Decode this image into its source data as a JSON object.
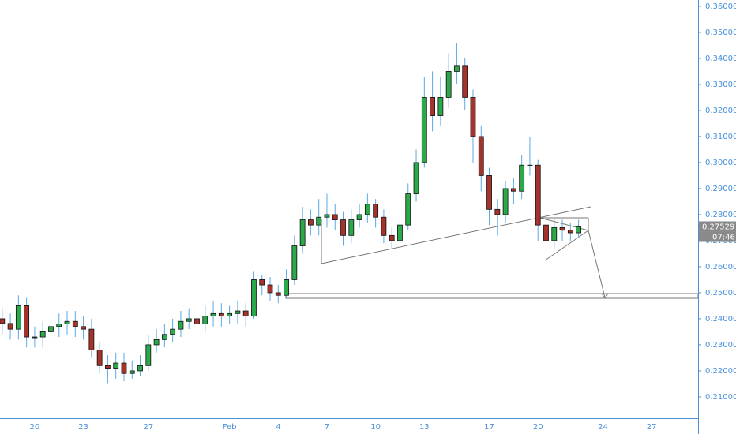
{
  "chart_data": {
    "type": "candlestick",
    "colors": {
      "up": "#2ba84a",
      "down": "#a5332c",
      "wick": "#5aa9e6",
      "axis": "#4a90d9"
    },
    "categories": [
      null,
      null,
      null,
      null,
      "20",
      null,
      null,
      null,
      null,
      null,
      "23",
      null,
      null,
      null,
      null,
      null,
      null,
      null,
      "27",
      null,
      null,
      null,
      null,
      null,
      null,
      null,
      null,
      null,
      "Feb",
      null,
      null,
      null,
      null,
      null,
      "4",
      null,
      null,
      null,
      null,
      null,
      "7",
      null,
      null,
      null,
      null,
      null,
      "10",
      null,
      null,
      null,
      null,
      null,
      "13",
      null,
      null,
      null,
      null,
      null,
      null,
      null,
      "17",
      null,
      null,
      null,
      null,
      null,
      "20",
      null,
      null,
      null,
      null,
      null,
      null,
      null,
      "24",
      null,
      null,
      null,
      null,
      null,
      "27",
      null,
      null,
      null,
      null,
      null
    ],
    "open": [
      0.24,
      0.2382,
      0.236,
      0.245,
      0.233,
      0.233,
      0.235,
      0.237,
      0.238,
      0.239,
      0.237,
      0.236,
      0.228,
      0.222,
      0.221,
      0.223,
      0.219,
      0.22,
      0.222,
      0.23,
      0.232,
      0.234,
      0.236,
      0.239,
      0.24,
      0.238,
      0.241,
      0.242,
      0.241,
      0.242,
      0.243,
      0.241,
      0.255,
      0.253,
      0.25,
      0.249,
      0.255,
      0.268,
      0.278,
      0.276,
      0.279,
      0.28,
      0.278,
      0.272,
      0.278,
      0.28,
      0.284,
      0.279,
      0.272,
      0.27,
      0.276,
      0.288,
      0.3,
      0.325,
      0.318,
      0.325,
      0.335,
      0.337,
      0.325,
      0.31,
      0.295,
      0.282,
      0.28,
      0.29,
      0.289,
      0.299,
      0.299,
      0.276,
      0.27,
      0.275,
      0.274,
      0.273,
      null,
      null,
      null,
      null,
      null,
      null,
      null,
      null,
      null,
      null,
      null,
      null,
      null,
      null
    ],
    "high": [
      0.244,
      0.242,
      0.249,
      0.248,
      0.237,
      0.239,
      0.241,
      0.242,
      0.243,
      0.243,
      0.241,
      0.24,
      0.231,
      0.226,
      0.227,
      0.227,
      0.224,
      0.226,
      0.234,
      0.236,
      0.238,
      0.24,
      0.243,
      0.244,
      0.243,
      0.245,
      0.247,
      0.246,
      0.245,
      0.247,
      0.246,
      0.258,
      0.257,
      0.256,
      0.253,
      0.259,
      0.272,
      0.283,
      0.282,
      0.286,
      0.288,
      0.284,
      0.281,
      0.282,
      0.284,
      0.288,
      0.286,
      0.282,
      0.275,
      0.28,
      0.292,
      0.305,
      0.333,
      0.335,
      0.333,
      0.342,
      0.346,
      0.34,
      0.328,
      0.314,
      0.298,
      0.286,
      0.293,
      0.294,
      0.303,
      0.31,
      0.301,
      0.279,
      0.279,
      0.278,
      0.277,
      0.278,
      null,
      null,
      null,
      null,
      null,
      null,
      null,
      null,
      null,
      null,
      null,
      null,
      null,
      null
    ],
    "low": [
      0.234,
      0.232,
      0.232,
      0.229,
      0.229,
      0.229,
      0.231,
      0.233,
      0.234,
      0.233,
      0.232,
      0.225,
      0.219,
      0.215,
      0.217,
      0.216,
      0.217,
      0.218,
      0.22,
      0.227,
      0.229,
      0.231,
      0.233,
      0.236,
      0.234,
      0.235,
      0.237,
      0.237,
      0.238,
      0.238,
      0.237,
      0.24,
      0.249,
      0.247,
      0.246,
      0.248,
      0.253,
      0.265,
      0.272,
      0.272,
      0.275,
      0.274,
      0.268,
      0.269,
      0.275,
      0.277,
      0.275,
      0.269,
      0.267,
      0.268,
      0.274,
      0.285,
      0.298,
      0.312,
      0.314,
      0.321,
      0.33,
      0.32,
      0.3,
      0.289,
      0.276,
      0.272,
      0.277,
      0.284,
      0.286,
      0.295,
      0.27,
      0.262,
      0.267,
      0.27,
      0.27,
      0.271,
      null,
      null,
      null,
      null,
      null,
      null,
      null,
      null,
      null,
      null,
      null,
      null,
      null,
      null
    ],
    "close": [
      0.2382,
      0.236,
      0.245,
      0.233,
      0.233,
      0.235,
      0.237,
      0.238,
      0.239,
      0.237,
      0.236,
      0.228,
      0.222,
      0.221,
      0.223,
      0.219,
      0.22,
      0.222,
      0.23,
      0.232,
      0.234,
      0.236,
      0.239,
      0.24,
      0.238,
      0.241,
      0.242,
      0.241,
      0.242,
      0.243,
      0.241,
      0.255,
      0.253,
      0.25,
      0.249,
      0.255,
      0.268,
      0.278,
      0.276,
      0.279,
      0.28,
      0.278,
      0.272,
      0.278,
      0.28,
      0.284,
      0.279,
      0.272,
      0.27,
      0.276,
      0.288,
      0.3,
      0.325,
      0.318,
      0.325,
      0.335,
      0.337,
      0.325,
      0.31,
      0.295,
      0.282,
      0.28,
      0.29,
      0.289,
      0.299,
      0.299,
      0.276,
      0.27,
      0.275,
      0.274,
      0.273,
      0.27529,
      null,
      null,
      null,
      null,
      null,
      null,
      null,
      null,
      null,
      null,
      null,
      null,
      null,
      null
    ],
    "ylim": [
      0.2018,
      0.3624
    ],
    "yticks": [
      {
        "value": 0.21,
        "label": "0.21000"
      },
      {
        "value": 0.22,
        "label": "0.22000"
      },
      {
        "value": 0.23,
        "label": "0.23000"
      },
      {
        "value": 0.24,
        "label": "0.24000"
      },
      {
        "value": 0.25,
        "label": "0.25000"
      },
      {
        "value": 0.26,
        "label": "0.26000"
      },
      {
        "value": 0.27,
        "label": "0.27000"
      },
      {
        "value": 0.28,
        "label": "0.28000"
      },
      {
        "value": 0.29,
        "label": "0.29000"
      },
      {
        "value": 0.3,
        "label": "0.30000"
      },
      {
        "value": 0.31,
        "label": "0.31000"
      },
      {
        "value": 0.32,
        "label": "0.32000"
      },
      {
        "value": 0.33,
        "label": "0.33000"
      },
      {
        "value": 0.34,
        "label": "0.34000"
      },
      {
        "value": 0.35,
        "label": "0.35000"
      },
      {
        "value": 0.36,
        "label": "0.36000"
      }
    ],
    "last_price": {
      "value": 0.27529,
      "label": "0.27529"
    },
    "countdown": "07:46"
  }
}
